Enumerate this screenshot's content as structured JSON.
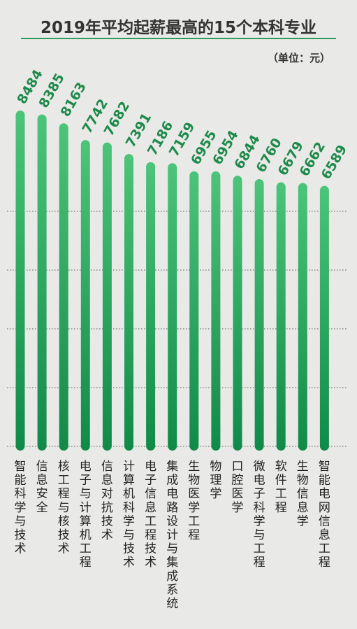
{
  "header": {
    "title": "2019年平均起薪最高的15个本科专业",
    "unit": "（单位：元）"
  },
  "colors": {
    "bar_top": "#4cc47a",
    "bar_bottom": "#108a48",
    "value_text": "#1e8a4a",
    "label_text": "#222222",
    "grid": "#555555",
    "rule": "#2e9a5c"
  },
  "chart_data": {
    "type": "bar",
    "title": "2019年平均起薪最高的15个本科专业",
    "unit": "（单位：元）",
    "categories": [
      "智能科学与技术",
      "信息安全",
      "核工程与核技术",
      "电子与计算机工程",
      "信息对抗技术",
      "计算机科学与技术",
      "电子信息工程技术",
      "集成电路设计与集成系统",
      "生物医学工程",
      "物理学",
      "口腔医学",
      "微电子科学与工程",
      "软件工程",
      "生物信息学",
      "智能电网信息工程"
    ],
    "values": [
      8484,
      8385,
      8163,
      7742,
      7682,
      7391,
      7186,
      7159,
      6955,
      6954,
      6844,
      6760,
      6679,
      6662,
      6589
    ],
    "grid": true
  }
}
